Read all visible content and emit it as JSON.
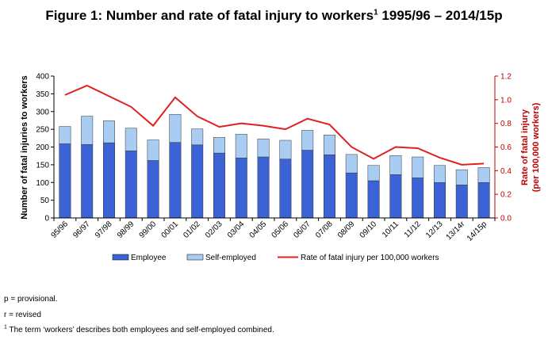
{
  "figure": {
    "title_main": "Figure 1: Number and rate of fatal injury to workers",
    "title_sup": "1",
    "title_tail": " 1995/96 – 2014/15p"
  },
  "chart_data": {
    "type": "bar",
    "stacked": true,
    "categories": [
      "95/96",
      "96/97",
      "97/98",
      "98/99",
      "99/00",
      "00/01",
      "01/02",
      "02/03",
      "03/04",
      "04/05",
      "05/06",
      "06/07",
      "07/08",
      "08/09",
      "09/10",
      "10/11",
      "11/12",
      "12/13",
      "13/14r",
      "14/15p"
    ],
    "series": [
      {
        "name": "Employee",
        "color": "#3b63d6",
        "values": [
          209,
          207,
          212,
          189,
          162,
          213,
          206,
          183,
          169,
          172,
          166,
          191,
          178,
          127,
          105,
          122,
          113,
          100,
          93,
          100
        ]
      },
      {
        "name": "Self-employed",
        "color": "#a9cdf2",
        "values": [
          49,
          80,
          62,
          64,
          58,
          79,
          45,
          44,
          67,
          51,
          53,
          56,
          56,
          52,
          43,
          54,
          59,
          48,
          43,
          42
        ]
      }
    ],
    "rate_series": {
      "name": "Rate of fatal injury per 100,000 workers",
      "color": "#e02020",
      "values": [
        1.04,
        1.12,
        1.03,
        0.94,
        0.78,
        1.02,
        0.86,
        0.77,
        0.8,
        0.78,
        0.75,
        0.84,
        0.79,
        0.6,
        0.5,
        0.6,
        0.59,
        0.51,
        0.45,
        0.46
      ]
    },
    "ylabel_left": "Number of fatal injuries to workers",
    "ylabel_right_line1": "Rate of fatal injury",
    "ylabel_right_line2": "(per 100,000 workers)",
    "ylim_left": [
      0,
      400
    ],
    "yticks_left": [
      "0",
      "50",
      "100",
      "150",
      "200",
      "250",
      "300",
      "350",
      "400"
    ],
    "ylim_right": [
      0,
      1.2
    ],
    "yticks_right": [
      "0.0",
      "0.2",
      "0.4",
      "0.6",
      "0.8",
      "1.0",
      "1.2"
    ],
    "legend_position": "bottom",
    "grid": false
  },
  "notes": {
    "provisional": "p = provisional.",
    "revised": "r = revised",
    "footnote_sup": "1",
    "footnote_text": " The term ‘workers’ describes both employees and self-employed combined."
  }
}
